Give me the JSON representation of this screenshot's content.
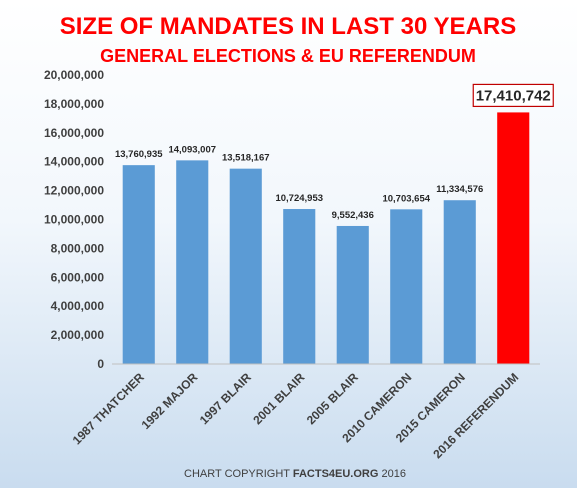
{
  "chart_data": {
    "type": "bar",
    "title": "SIZE OF MANDATES IN LAST 30 YEARS",
    "subtitle": "GENERAL ELECTIONS & EU REFERENDUM",
    "xlabel": "",
    "ylabel": "",
    "ylim": [
      0,
      20000000
    ],
    "yticks": [
      0,
      2000000,
      4000000,
      6000000,
      8000000,
      10000000,
      12000000,
      14000000,
      16000000,
      18000000,
      20000000
    ],
    "ytick_labels": [
      "0",
      "2,000,000",
      "4,000,000",
      "6,000,000",
      "8,000,000",
      "10,000,000",
      "12,000,000",
      "14,000,000",
      "16,000,000",
      "18,000,000",
      "20,000,000"
    ],
    "grid": false,
    "legend": "none",
    "categories": [
      "1987 THATCHER",
      "1992 MAJOR",
      "1997 BLAIR",
      "2001 BLAIR",
      "2005 BLAIR",
      "2010 CAMERON",
      "2015 CAMERON",
      "2016 REFERENDUM"
    ],
    "values": [
      13760935,
      14093007,
      13518167,
      10724953,
      9552436,
      10703654,
      11334576,
      17410742
    ],
    "data_labels": [
      "13,760,935",
      "14,093,007",
      "13,518,167",
      "10,724,953",
      "9,552,436",
      "10,703,654",
      "11,334,576",
      "17,410,742"
    ],
    "bar_color": "#5b9bd5",
    "highlight_color": "#ff0000",
    "highlight_index": 7,
    "title_color": "#ff0000"
  },
  "footer": {
    "prefix": "CHART COPYRIGHT ",
    "brand": "FACTS4EU.ORG",
    "suffix": " 2016"
  }
}
